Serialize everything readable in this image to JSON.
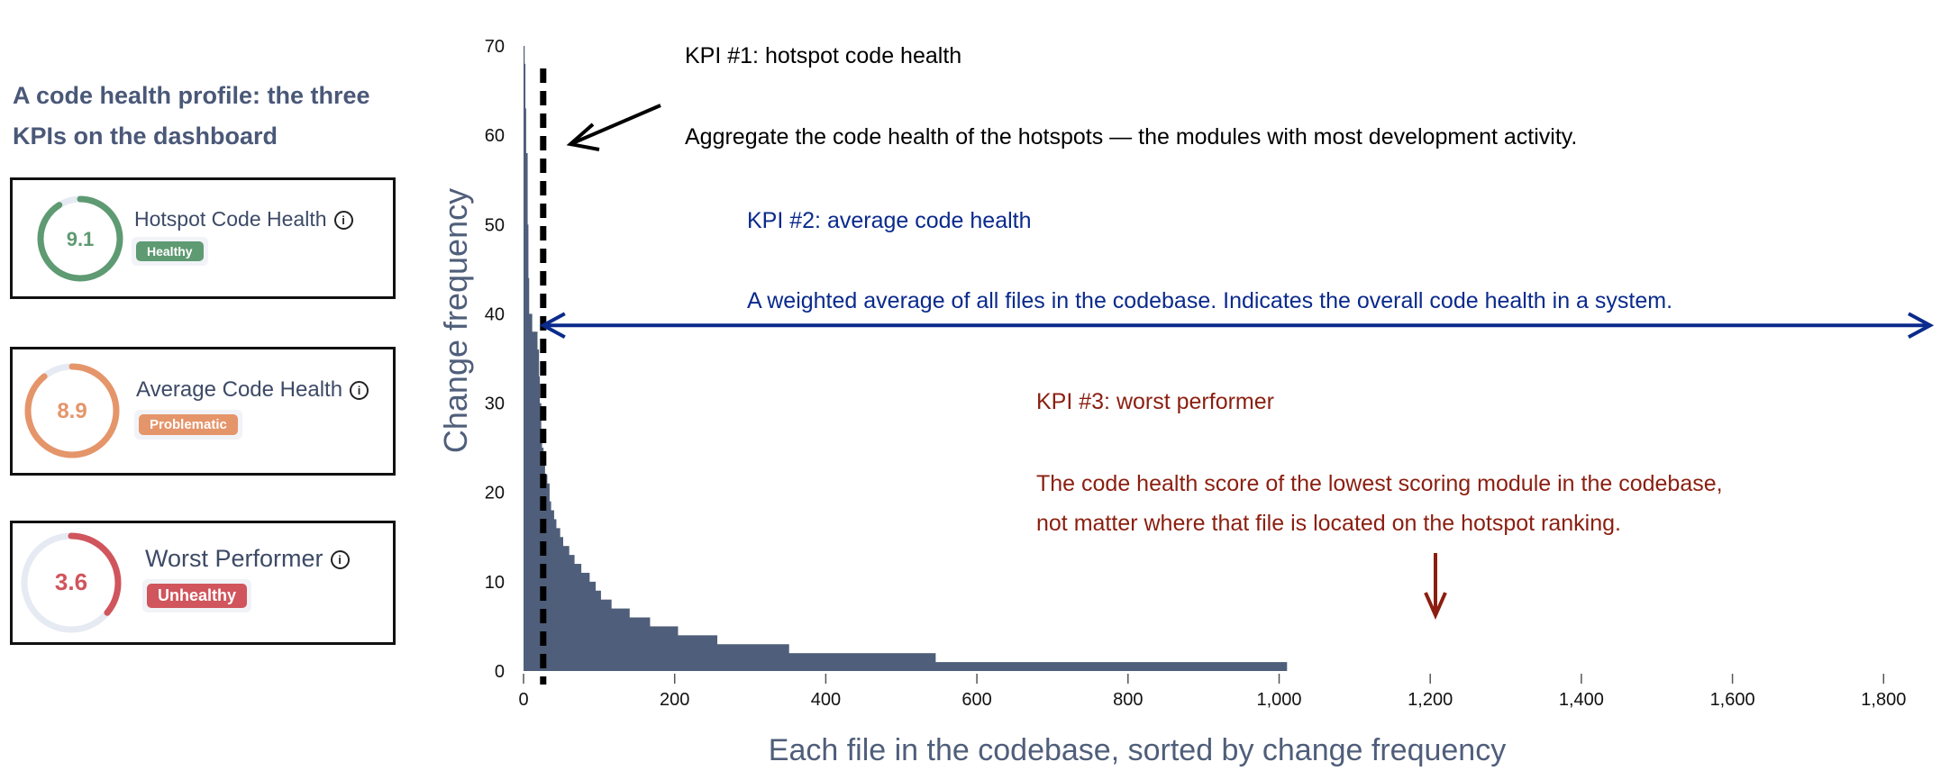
{
  "sidebar": {
    "title": "A code health profile: the three KPIs on the dashboard",
    "cards": [
      {
        "label": "Hotspot Code Health",
        "score": "9.1",
        "score_value": 9.1,
        "badge": "Healthy",
        "color": "#5e9a72",
        "info_icon": "info-icon"
      },
      {
        "label": "Average Code Health",
        "score": "8.9",
        "score_value": 8.9,
        "badge": "Problematic",
        "color": "#e5956a",
        "info_icon": "info-icon"
      },
      {
        "label": "Worst Performer",
        "score": "3.6",
        "score_value": 3.6,
        "badge": "Unhealthy",
        "color": "#d0555c",
        "info_icon": "info-icon"
      }
    ],
    "ring_track_color": "#e6eaf2"
  },
  "annotations": {
    "kpi1_title": "KPI #1: hotspot code health",
    "kpi1_text": "Aggregate the code health of the hotspots — the modules with most development activity.",
    "kpi1_color": "#000000",
    "kpi2_title": "KPI #2: average code health",
    "kpi2_text": "A weighted average of all files in the codebase. Indicates the overall code health in a system.",
    "kpi2_color": "#0a2a8c",
    "kpi3_title": "KPI #3: worst performer",
    "kpi3_line1": "The code health score of the lowest scoring module in the codebase,",
    "kpi3_line2": "not matter where that file is located on the hotspot ranking.",
    "kpi3_color": "#8b1e10"
  },
  "chart_data": {
    "type": "area",
    "xlabel": "Each file in the codebase, sorted by change frequency",
    "ylabel": "Change frequency",
    "xlim": [
      0,
      1800
    ],
    "ylim": [
      0,
      70
    ],
    "xticks": [
      0,
      200,
      400,
      600,
      800,
      1000,
      1200,
      1400,
      1600,
      1800
    ],
    "xtick_labels": [
      "0",
      "200",
      "400",
      "600",
      "800",
      "1,000",
      "1,200",
      "1,400",
      "1,600",
      "1,800"
    ],
    "yticks": [
      0,
      10,
      20,
      30,
      40,
      50,
      60,
      70
    ],
    "ytick_labels": [
      "0",
      "10",
      "20",
      "30",
      "40",
      "50",
      "60",
      "70"
    ],
    "grid": false,
    "fill_color": "#4f5e7a",
    "hotspot_cutoff_rank": 26,
    "x_end": 1010,
    "steps": [
      [
        0,
        70
      ],
      [
        1,
        68
      ],
      [
        2,
        63
      ],
      [
        3,
        58
      ],
      [
        5,
        50
      ],
      [
        6,
        44
      ],
      [
        7,
        40
      ],
      [
        11,
        38
      ],
      [
        18,
        36
      ],
      [
        20,
        33
      ],
      [
        21,
        30
      ],
      [
        23,
        27
      ],
      [
        24,
        25
      ],
      [
        26,
        23
      ],
      [
        28,
        22
      ],
      [
        31,
        21
      ],
      [
        34,
        19
      ],
      [
        36,
        18
      ],
      [
        40,
        17
      ],
      [
        43,
        16
      ],
      [
        48,
        15
      ],
      [
        52,
        14
      ],
      [
        60,
        13
      ],
      [
        67,
        12
      ],
      [
        76,
        11
      ],
      [
        87,
        10
      ],
      [
        95,
        9
      ],
      [
        102,
        8
      ],
      [
        116,
        7
      ],
      [
        140,
        6
      ],
      [
        167,
        5
      ],
      [
        204,
        4
      ],
      [
        256,
        3
      ],
      [
        351,
        2
      ],
      [
        545,
        1
      ]
    ],
    "average_line_y": 38
  }
}
